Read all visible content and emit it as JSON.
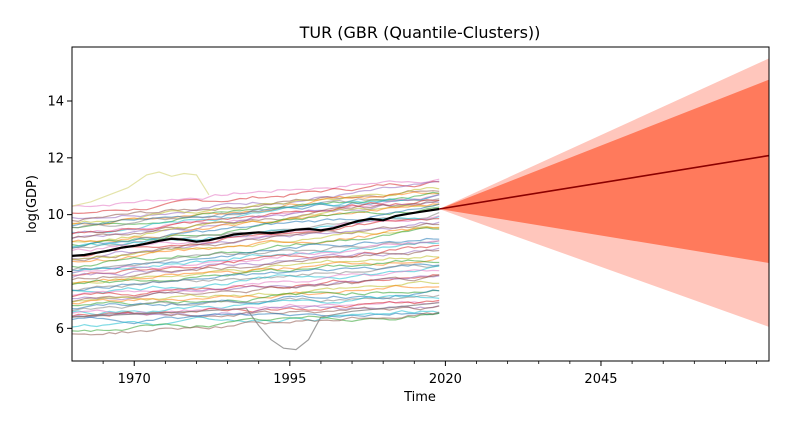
{
  "chart_data": {
    "type": "line",
    "title": "TUR (GBR (Quantile-Clusters))",
    "xlabel": "Time",
    "ylabel": "log(GDP)",
    "xlim": [
      1960,
      2072
    ],
    "ylim": [
      4.85,
      15.9
    ],
    "x_ticks": [
      1970,
      1995,
      2020,
      2045
    ],
    "y_ticks": [
      6,
      8,
      10,
      12,
      14
    ],
    "grid": false,
    "legend": "none",
    "history_start": 1960,
    "history_end": 2019,
    "forecast": {
      "start_year": 2019,
      "end_year": 2072,
      "median": [
        10.2,
        12.08
      ],
      "inner_band": {
        "lower": [
          10.2,
          8.3
        ],
        "upper": [
          10.2,
          14.75
        ]
      },
      "outer_band": {
        "lower": [
          10.2,
          6.05
        ],
        "upper": [
          10.2,
          15.5
        ]
      },
      "colors": {
        "median": "#8b0000",
        "inner": "#ff7a5c",
        "outer": "#ffc6bc"
      }
    },
    "target_series": {
      "name": "TUR",
      "color": "#000000",
      "x": [
        1960,
        1962,
        1964,
        1966,
        1968,
        1970,
        1972,
        1974,
        1976,
        1978,
        1980,
        1982,
        1984,
        1986,
        1988,
        1990,
        1992,
        1994,
        1996,
        1998,
        2000,
        2002,
        2004,
        2006,
        2008,
        2010,
        2012,
        2014,
        2016,
        2019
      ],
      "y": [
        8.55,
        8.58,
        8.66,
        8.74,
        8.84,
        8.9,
        8.98,
        9.08,
        9.15,
        9.12,
        9.05,
        9.1,
        9.2,
        9.3,
        9.34,
        9.38,
        9.35,
        9.4,
        9.47,
        9.5,
        9.45,
        9.52,
        9.65,
        9.78,
        9.85,
        9.8,
        9.95,
        10.03,
        10.1,
        10.2
      ]
    },
    "cluster_series": [
      {
        "start": 10.3,
        "end": 11.3,
        "color": "#e377c2"
      },
      {
        "start": 10.0,
        "end": 11.2,
        "color": "#d62728"
      },
      {
        "start": 9.9,
        "end": 11.0,
        "color": "#9467bd"
      },
      {
        "start": 9.8,
        "end": 10.95,
        "color": "#8c564b"
      },
      {
        "start": 9.7,
        "end": 10.9,
        "color": "#bcbd22"
      },
      {
        "start": 9.65,
        "end": 10.85,
        "color": "#ff7f0e"
      },
      {
        "start": 9.6,
        "end": 10.8,
        "color": "#2ca02c"
      },
      {
        "start": 9.55,
        "end": 10.75,
        "color": "#1f77b4"
      },
      {
        "start": 9.5,
        "end": 10.7,
        "color": "#7f7f7f"
      },
      {
        "start": 9.4,
        "end": 10.65,
        "color": "#17becf"
      },
      {
        "start": 9.35,
        "end": 10.6,
        "color": "#e377c2"
      },
      {
        "start": 9.3,
        "end": 10.55,
        "color": "#d62728"
      },
      {
        "start": 9.2,
        "end": 10.5,
        "color": "#9467bd"
      },
      {
        "start": 9.15,
        "end": 10.45,
        "color": "#8c564b"
      },
      {
        "start": 9.1,
        "end": 10.4,
        "color": "#bcbd22"
      },
      {
        "start": 9.0,
        "end": 10.35,
        "color": "#ff7f0e"
      },
      {
        "start": 8.95,
        "end": 10.3,
        "color": "#2ca02c"
      },
      {
        "start": 8.9,
        "end": 10.2,
        "color": "#1f77b4"
      },
      {
        "start": 8.85,
        "end": 10.1,
        "color": "#7f7f7f"
      },
      {
        "start": 8.8,
        "end": 10.0,
        "color": "#17becf"
      },
      {
        "start": 8.7,
        "end": 9.95,
        "color": "#e377c2"
      },
      {
        "start": 8.6,
        "end": 9.9,
        "color": "#d62728"
      },
      {
        "start": 8.5,
        "end": 9.8,
        "color": "#9467bd"
      },
      {
        "start": 8.45,
        "end": 9.7,
        "color": "#8c564b"
      },
      {
        "start": 8.4,
        "end": 9.6,
        "color": "#bcbd22"
      },
      {
        "start": 8.3,
        "end": 9.5,
        "color": "#ff7f0e"
      },
      {
        "start": 8.2,
        "end": 9.4,
        "color": "#2ca02c"
      },
      {
        "start": 8.1,
        "end": 9.3,
        "color": "#1f77b4"
      },
      {
        "start": 8.05,
        "end": 9.2,
        "color": "#7f7f7f"
      },
      {
        "start": 8.0,
        "end": 9.1,
        "color": "#17becf"
      },
      {
        "start": 7.9,
        "end": 9.0,
        "color": "#e377c2"
      },
      {
        "start": 7.85,
        "end": 8.9,
        "color": "#d62728"
      },
      {
        "start": 7.8,
        "end": 8.8,
        "color": "#9467bd"
      },
      {
        "start": 7.7,
        "end": 8.7,
        "color": "#8c564b"
      },
      {
        "start": 7.6,
        "end": 8.6,
        "color": "#bcbd22"
      },
      {
        "start": 7.55,
        "end": 8.5,
        "color": "#ff7f0e"
      },
      {
        "start": 7.5,
        "end": 8.4,
        "color": "#2ca02c"
      },
      {
        "start": 7.4,
        "end": 8.3,
        "color": "#1f77b4"
      },
      {
        "start": 7.35,
        "end": 8.2,
        "color": "#7f7f7f"
      },
      {
        "start": 7.3,
        "end": 8.1,
        "color": "#17becf"
      },
      {
        "start": 7.2,
        "end": 8.0,
        "color": "#e377c2"
      },
      {
        "start": 7.1,
        "end": 7.9,
        "color": "#d62728"
      },
      {
        "start": 7.05,
        "end": 7.8,
        "color": "#9467bd"
      },
      {
        "start": 7.0,
        "end": 7.7,
        "color": "#8c564b"
      },
      {
        "start": 6.9,
        "end": 7.6,
        "color": "#bcbd22"
      },
      {
        "start": 6.85,
        "end": 7.5,
        "color": "#ff7f0e"
      },
      {
        "start": 6.8,
        "end": 7.4,
        "color": "#2ca02c"
      },
      {
        "start": 6.7,
        "end": 7.3,
        "color": "#1f77b4"
      },
      {
        "start": 6.6,
        "end": 7.2,
        "color": "#7f7f7f"
      },
      {
        "start": 6.55,
        "end": 7.1,
        "color": "#17becf"
      },
      {
        "start": 6.5,
        "end": 7.0,
        "color": "#e377c2"
      },
      {
        "start": 6.45,
        "end": 6.9,
        "color": "#d62728"
      },
      {
        "start": 6.4,
        "end": 6.8,
        "color": "#9467bd"
      },
      {
        "start": 6.35,
        "end": 6.7,
        "color": "#8c564b"
      },
      {
        "start": 6.3,
        "end": 6.6,
        "color": "#1f77b4"
      },
      {
        "start": 6.1,
        "end": 6.55,
        "color": "#17becf"
      },
      {
        "start": 5.9,
        "end": 6.5,
        "color": "#2ca02c"
      },
      {
        "start": 5.8,
        "end": 6.5,
        "color": "#8c564b"
      }
    ],
    "special_series": [
      {
        "color": "#dbdb8d",
        "x": [
          1960,
          1963,
          1966,
          1969,
          1972,
          1974,
          1976,
          1978,
          1980,
          1982
        ],
        "y": [
          10.3,
          10.45,
          10.7,
          10.95,
          11.4,
          11.5,
          11.35,
          11.45,
          11.4,
          10.7
        ]
      },
      {
        "color": "#7f7f7f",
        "x": [
          1960,
          1970,
          1980,
          1988,
          1990,
          1992,
          1994,
          1996,
          1998,
          2000,
          2005,
          2010,
          2019
        ],
        "y": [
          6.4,
          6.5,
          6.6,
          6.7,
          6.1,
          5.6,
          5.3,
          5.25,
          5.6,
          6.4,
          6.6,
          6.7,
          6.9
        ]
      }
    ]
  }
}
